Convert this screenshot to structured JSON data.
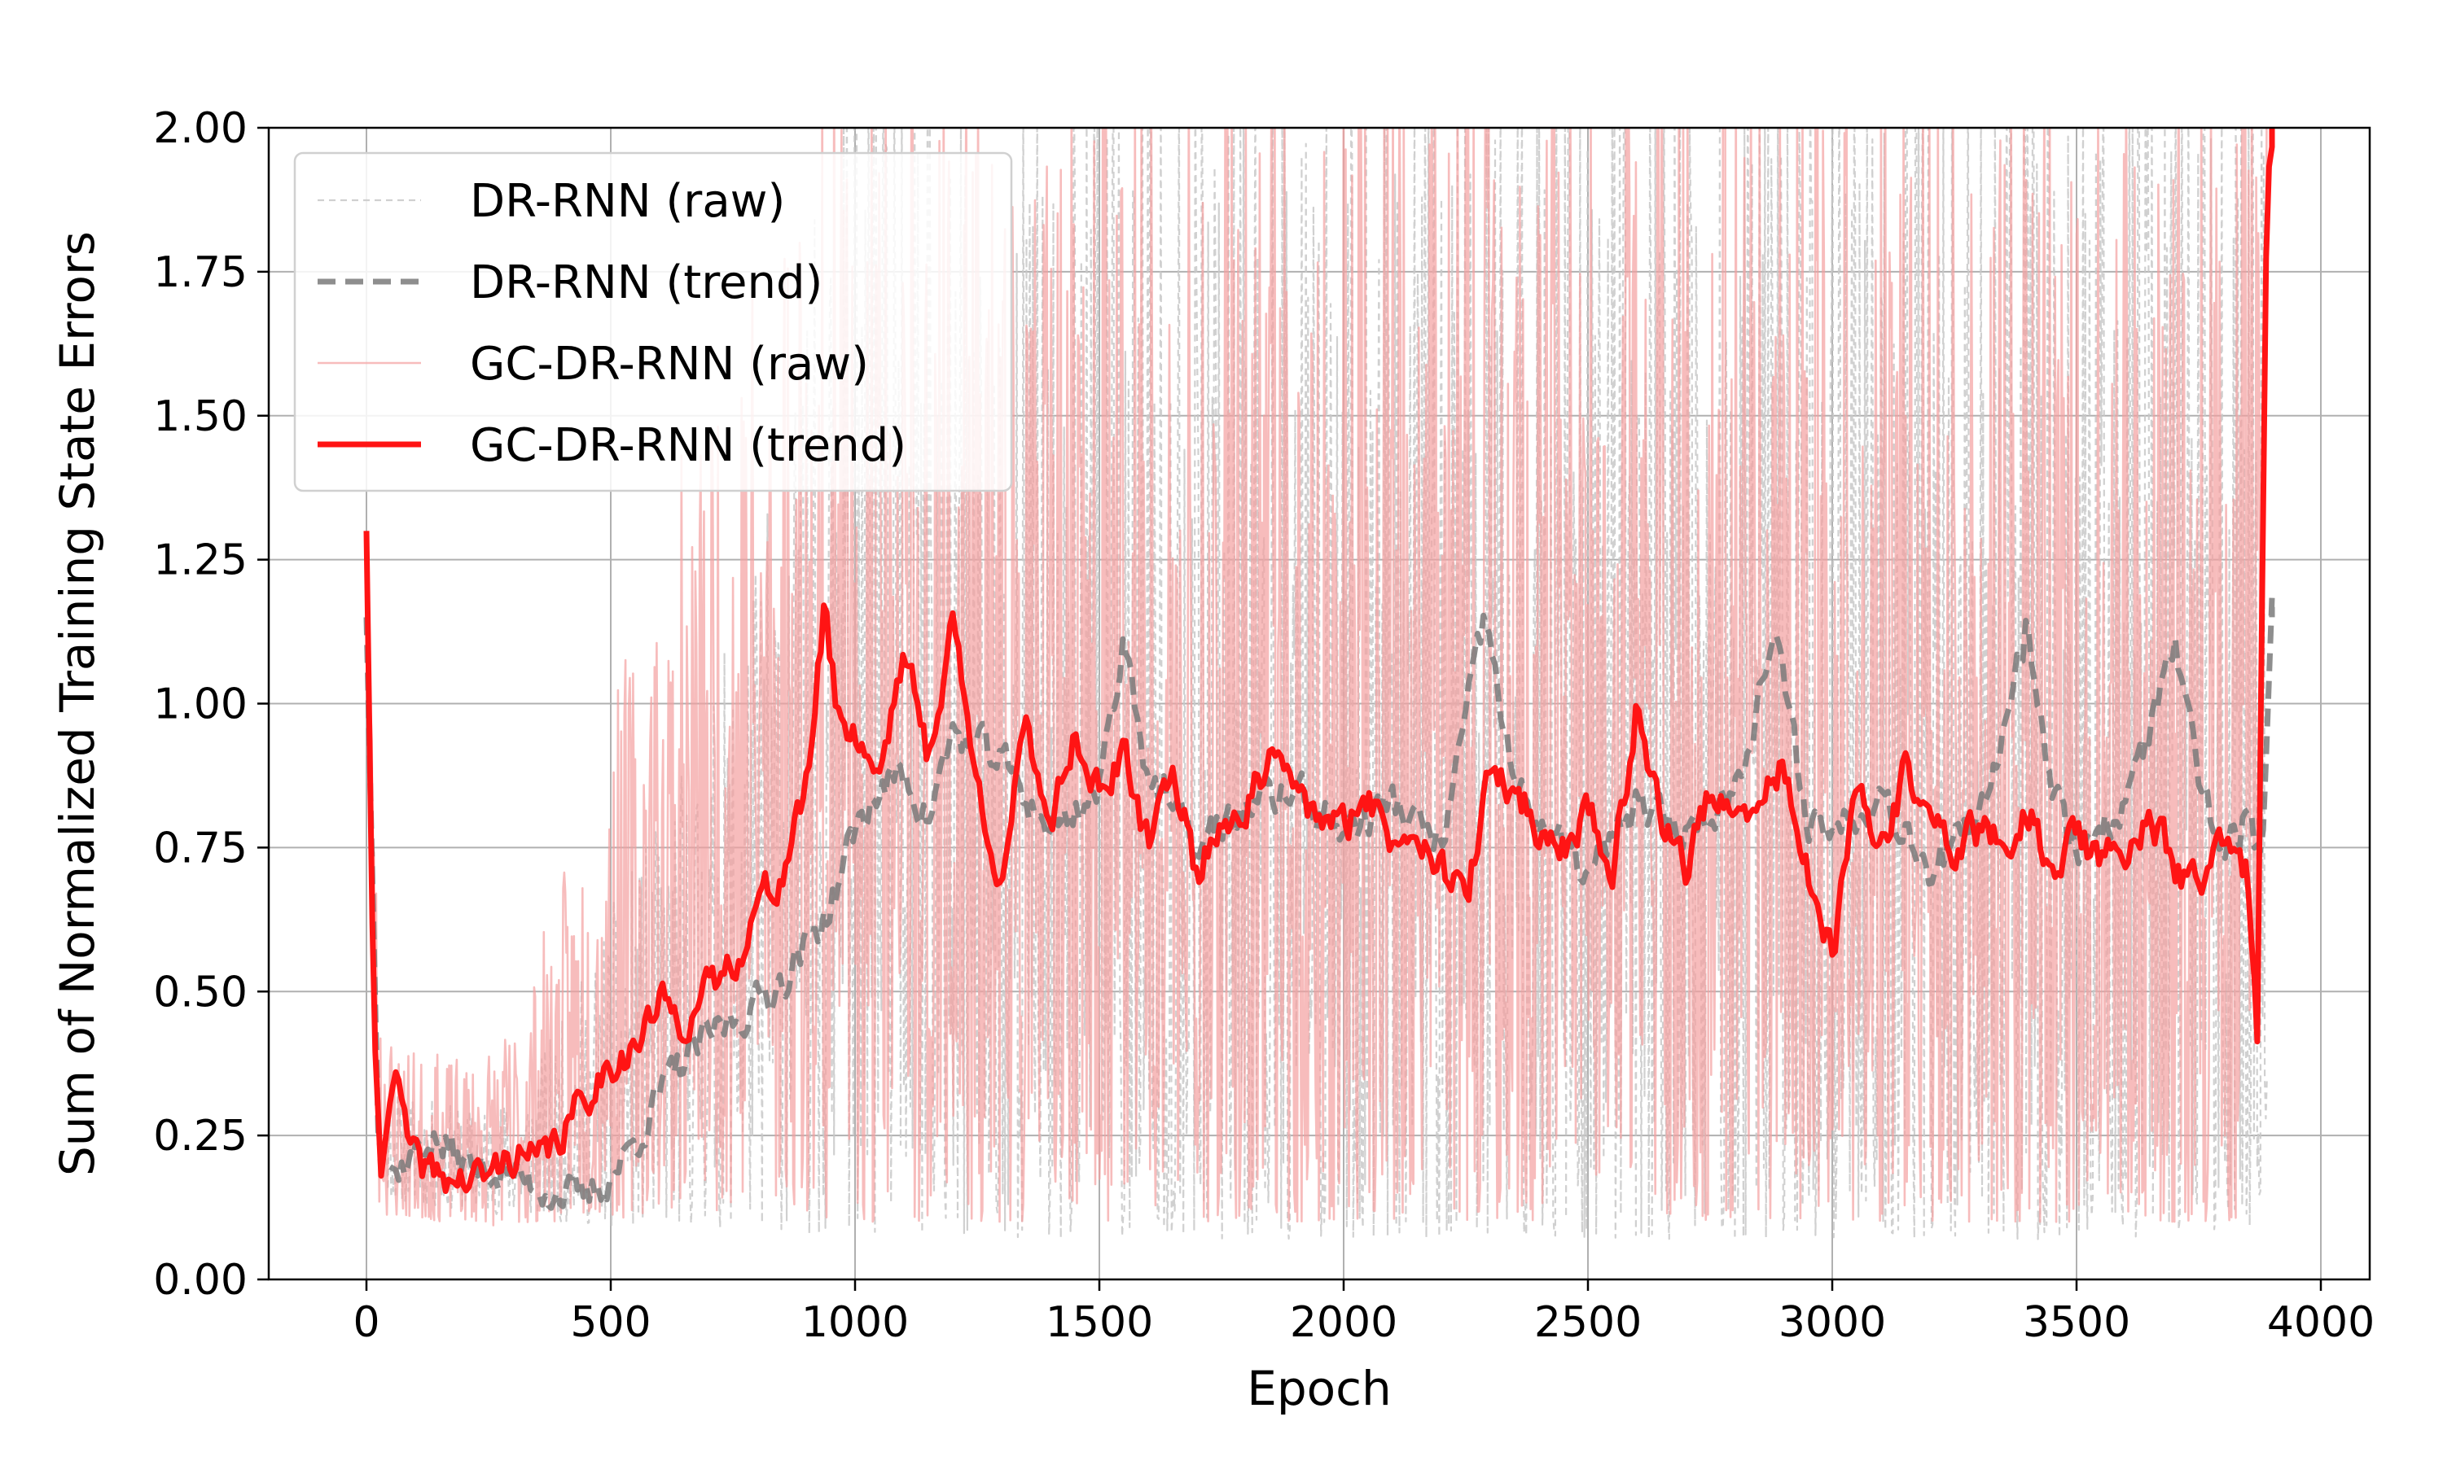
{
  "chart_data": {
    "type": "line",
    "title": "",
    "xlabel": "Epoch",
    "ylabel": "Sum of Normalized Training State Errors",
    "xlim": [
      -200,
      4100
    ],
    "ylim": [
      0.0,
      2.0
    ],
    "xticks": [
      0,
      500,
      1000,
      1500,
      2000,
      2500,
      3000,
      3500,
      4000
    ],
    "xtick_labels": [
      "0",
      "500",
      "1000",
      "1500",
      "2000",
      "2500",
      "3000",
      "3500",
      "4000"
    ],
    "yticks": [
      0.0,
      0.25,
      0.5,
      0.75,
      1.0,
      1.25,
      1.5,
      1.75,
      2.0
    ],
    "ytick_labels": [
      "0.00",
      "0.25",
      "0.50",
      "0.75",
      "1.00",
      "1.25",
      "1.50",
      "1.75",
      "2.00"
    ],
    "grid": true,
    "legend_position": "top-left",
    "series": [
      {
        "name": "DR-RNN (raw)",
        "color": "#c8c8c8",
        "style": "dashed-thin",
        "band": {
          "x": [
            0,
            25,
            50,
            100,
            200,
            300,
            400,
            500,
            600,
            700,
            800,
            900,
            1000,
            1500,
            2000,
            2500,
            3000,
            3500,
            3870,
            3890
          ],
          "low": [
            1.05,
            0.15,
            0.14,
            0.13,
            0.12,
            0.11,
            0.1,
            0.09,
            0.09,
            0.09,
            0.09,
            0.08,
            0.08,
            0.07,
            0.07,
            0.07,
            0.07,
            0.07,
            0.08,
            0.3
          ],
          "high": [
            1.3,
            0.3,
            0.35,
            0.32,
            0.3,
            0.32,
            0.45,
            0.65,
            0.8,
            1.0,
            1.3,
            1.7,
            2.0,
            2.0,
            2.0,
            2.0,
            2.0,
            2.0,
            2.0,
            2.0
          ]
        }
      },
      {
        "name": "DR-RNN (trend)",
        "color": "#7a7a7a",
        "style": "dashed-thick",
        "x": [
          0,
          25,
          40,
          60,
          100,
          130,
          200,
          300,
          400,
          450,
          500,
          550,
          600,
          650,
          700,
          750,
          800,
          850,
          900,
          950,
          1000,
          1050,
          1100,
          1150,
          1200,
          1300,
          1400,
          1500,
          1550,
          1600,
          1700,
          1800,
          1900,
          2000,
          2100,
          2200,
          2290,
          2350,
          2400,
          2500,
          2600,
          2700,
          2800,
          2880,
          2950,
          3000,
          3100,
          3200,
          3300,
          3400,
          3450,
          3500,
          3600,
          3700,
          3750,
          3800,
          3850,
          3880,
          3900
        ],
        "y": [
          1.15,
          0.22,
          0.2,
          0.19,
          0.22,
          0.25,
          0.2,
          0.18,
          0.15,
          0.14,
          0.18,
          0.24,
          0.32,
          0.38,
          0.42,
          0.45,
          0.48,
          0.52,
          0.58,
          0.65,
          0.78,
          0.85,
          0.88,
          0.8,
          0.95,
          0.9,
          0.78,
          0.85,
          1.12,
          0.88,
          0.75,
          0.82,
          0.85,
          0.78,
          0.83,
          0.75,
          1.15,
          0.85,
          0.8,
          0.7,
          0.82,
          0.78,
          0.85,
          1.12,
          0.8,
          0.78,
          0.85,
          0.72,
          0.78,
          1.15,
          0.85,
          0.75,
          0.82,
          1.1,
          0.85,
          0.75,
          0.8,
          0.7,
          1.15
        ]
      },
      {
        "name": "GC-DR-RNN (raw)",
        "color": "#f4a0a0",
        "style": "solid-thin",
        "band": {
          "x": [
            0,
            25,
            50,
            100,
            200,
            300,
            400,
            500,
            600,
            700,
            800,
            900,
            1000,
            1500,
            2000,
            2500,
            3000,
            3500,
            3870,
            3890
          ],
          "low": [
            1.2,
            0.12,
            0.1,
            0.1,
            0.1,
            0.09,
            0.1,
            0.1,
            0.12,
            0.12,
            0.12,
            0.11,
            0.1,
            0.1,
            0.1,
            0.1,
            0.1,
            0.1,
            0.1,
            1.9
          ],
          "high": [
            1.35,
            0.55,
            0.45,
            0.4,
            0.38,
            0.45,
            0.7,
            1.0,
            1.3,
            1.6,
            1.9,
            2.0,
            2.0,
            2.0,
            2.0,
            2.0,
            2.0,
            2.0,
            2.0,
            2.0
          ]
        }
      },
      {
        "name": "GC-DR-RNN (trend)",
        "color": "#ff1414",
        "style": "solid-thick",
        "x": [
          0,
          15,
          30,
          50,
          60,
          80,
          100,
          150,
          200,
          250,
          300,
          350,
          400,
          450,
          500,
          550,
          600,
          650,
          700,
          750,
          800,
          850,
          900,
          940,
          960,
          1000,
          1050,
          1100,
          1150,
          1200,
          1250,
          1300,
          1350,
          1400,
          1450,
          1500,
          1550,
          1600,
          1650,
          1700,
          1750,
          1800,
          1850,
          1900,
          1950,
          2000,
          2050,
          2100,
          2150,
          2200,
          2250,
          2300,
          2350,
          2400,
          2450,
          2500,
          2550,
          2600,
          2650,
          2700,
          2750,
          2800,
          2850,
          2900,
          2950,
          3000,
          3050,
          3100,
          3150,
          3200,
          3250,
          3300,
          3350,
          3400,
          3450,
          3500,
          3550,
          3600,
          3650,
          3700,
          3750,
          3800,
          3850,
          3870,
          3890,
          3900
        ],
        "y": [
          1.3,
          0.45,
          0.18,
          0.32,
          0.36,
          0.25,
          0.2,
          0.18,
          0.17,
          0.18,
          0.22,
          0.2,
          0.25,
          0.32,
          0.38,
          0.4,
          0.48,
          0.45,
          0.5,
          0.55,
          0.65,
          0.7,
          0.85,
          1.18,
          1.0,
          0.95,
          0.88,
          1.1,
          0.9,
          1.15,
          0.85,
          0.7,
          0.95,
          0.8,
          0.95,
          0.85,
          0.9,
          0.75,
          0.9,
          0.7,
          0.8,
          0.82,
          0.9,
          0.85,
          0.8,
          0.78,
          0.85,
          0.75,
          0.8,
          0.72,
          0.65,
          0.88,
          0.85,
          0.78,
          0.75,
          0.82,
          0.7,
          1.0,
          0.8,
          0.72,
          0.85,
          0.78,
          0.82,
          0.9,
          0.7,
          0.55,
          0.85,
          0.75,
          0.88,
          0.8,
          0.75,
          0.78,
          0.75,
          0.82,
          0.7,
          0.78,
          0.72,
          0.75,
          0.8,
          0.72,
          0.68,
          0.75,
          0.7,
          0.42,
          1.95,
          2.0
        ]
      }
    ]
  }
}
